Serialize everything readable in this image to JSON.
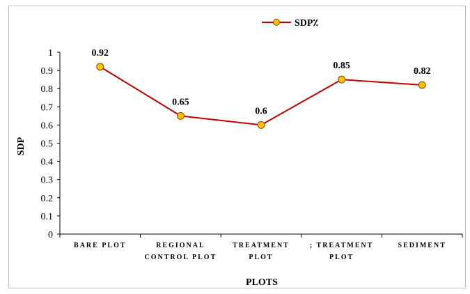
{
  "chart_data": {
    "type": "line",
    "categories": [
      [
        "BARE PLOT"
      ],
      [
        "REGIONAL",
        "CONTROL PLOT"
      ],
      [
        "TREATMENT",
        "PLOT"
      ],
      [
        "; TREATMENT",
        "PLOT"
      ],
      [
        "SEDIMENT"
      ]
    ],
    "series": [
      {
        "name": "SDP٪",
        "values": [
          0.92,
          0.65,
          0.6,
          0.85,
          0.82
        ],
        "color": "#C00000",
        "marker_fill": "#FFC000",
        "marker_edge": "#8B4A00"
      }
    ],
    "data_labels": [
      "0.92",
      "0.65",
      "0.6",
      "0.85",
      "0.82"
    ],
    "ylabel": "SDP",
    "xlabel": "PLOTS",
    "ylim": [
      0,
      1
    ],
    "yticks": [
      "0",
      "0.1",
      "0.2",
      "0.3",
      "0.4",
      "0.5",
      "0.6",
      "0.7",
      "0.8",
      "0.9",
      "1"
    ],
    "grid": false,
    "legend_position": "top-center"
  }
}
